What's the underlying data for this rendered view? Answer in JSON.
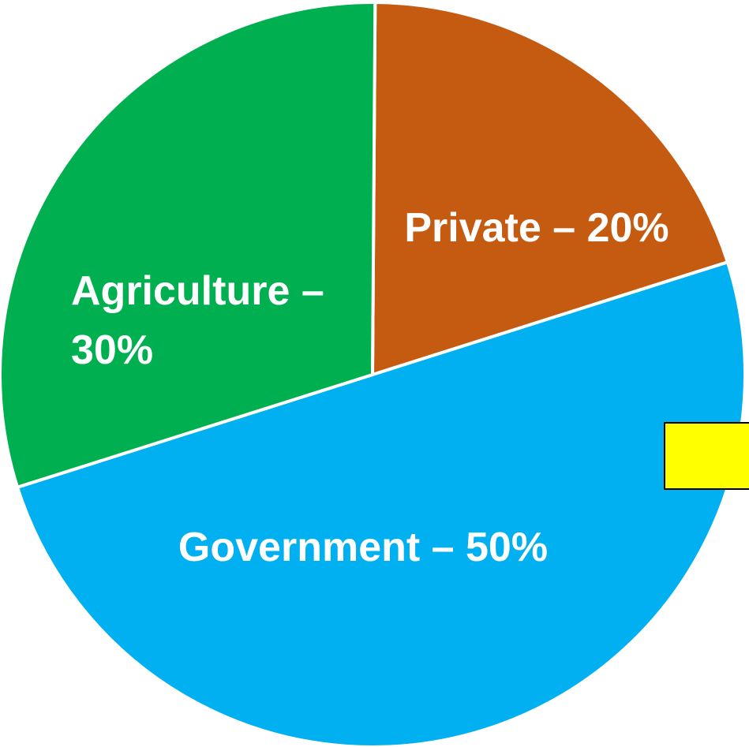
{
  "chart_data": {
    "type": "pie",
    "title": "",
    "slices": [
      {
        "label": "Private – 20%",
        "value": 20,
        "color": "#C55A11"
      },
      {
        "label": "Government – 50%",
        "value": 50,
        "color": "#00B0F0"
      },
      {
        "label": "Agriculture – 30%",
        "value": 30,
        "color": "#00B050"
      }
    ],
    "start": "12 o'clock",
    "direction": "clockwise",
    "legend": "none",
    "marker_color": "#FFFF00"
  }
}
